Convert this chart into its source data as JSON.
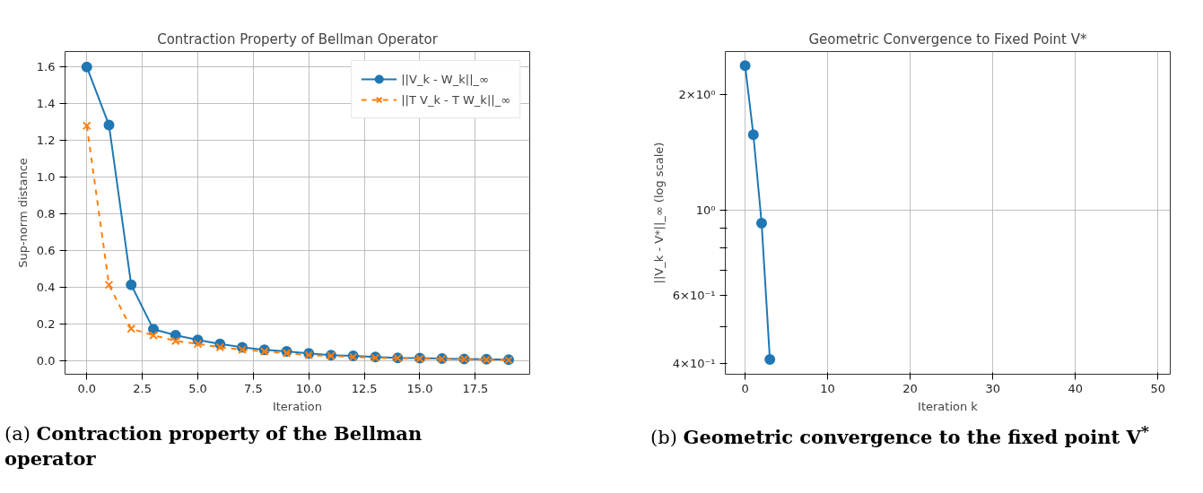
{
  "chart_data": [
    {
      "type": "line",
      "title": "Contraction Property of Bellman Operator",
      "xlabel": "Iteration",
      "ylabel": "Sup-norm distance",
      "x": [
        0,
        1,
        2,
        3,
        4,
        5,
        6,
        7,
        8,
        9,
        10,
        11,
        12,
        13,
        14,
        15,
        16,
        17,
        18,
        19
      ],
      "series": [
        {
          "name": "||V_k - W_k||_∞",
          "color": "#1f77b4",
          "marker": "circle",
          "line_style": "solid",
          "values": [
            1.6,
            1.283,
            0.413,
            0.171,
            0.138,
            0.113,
            0.091,
            0.073,
            0.059,
            0.05,
            0.039,
            0.03,
            0.026,
            0.02,
            0.015,
            0.014,
            0.011,
            0.009,
            0.008,
            0.005
          ]
        },
        {
          "name": "||T V_k - T W_k||_∞",
          "color": "#ff7f0e",
          "marker": "cross",
          "line_style": "dashed",
          "values": [
            1.28,
            0.413,
            0.174,
            0.138,
            0.107,
            0.091,
            0.073,
            0.059,
            0.05,
            0.041,
            0.03,
            0.026,
            0.02,
            0.015,
            0.014,
            0.011,
            0.009,
            0.008,
            0.005,
            0.003
          ]
        }
      ],
      "xlim": [
        -0.98,
        19.95
      ],
      "ylim": [
        -0.074,
        1.684
      ],
      "xticks": [
        {
          "value": 0,
          "label": "0.0"
        },
        {
          "value": 2.5,
          "label": "2.5"
        },
        {
          "value": 5,
          "label": "5.0"
        },
        {
          "value": 7.5,
          "label": "7.5"
        },
        {
          "value": 10,
          "label": "10.0"
        },
        {
          "value": 12.5,
          "label": "12.5"
        },
        {
          "value": 15,
          "label": "15.0"
        },
        {
          "value": 17.5,
          "label": "17.5"
        }
      ],
      "yticks": [
        {
          "value": 0,
          "label": "0.0"
        },
        {
          "value": 0.2,
          "label": "0.2"
        },
        {
          "value": 0.4,
          "label": "0.4"
        },
        {
          "value": 0.6,
          "label": "0.6"
        },
        {
          "value": 0.8,
          "label": "0.8"
        },
        {
          "value": 1.0,
          "label": "1.0"
        },
        {
          "value": 1.2,
          "label": "1.2"
        },
        {
          "value": 1.4,
          "label": "1.4"
        },
        {
          "value": 1.6,
          "label": "1.6"
        }
      ],
      "grid": true,
      "legend": "top right",
      "annotations": [
        "(a) Contraction property of the Bellman operator"
      ]
    },
    {
      "type": "line",
      "title": "Geometric Convergence to Fixed Point V*",
      "xlabel": "Iteration k",
      "ylabel": "||V_k - V*||_∞ (log scale)",
      "x": [
        0,
        1,
        2,
        3
      ],
      "series": [
        {
          "color": "#1f77b4",
          "values": [
            2.37,
            1.57,
            0.926,
            0.41
          ]
        }
      ],
      "marker": "circle",
      "log": "y",
      "xlim": [
        -2.4,
        51.5
      ],
      "ylim": [
        0.3755,
        2.58
      ],
      "xticks": [
        0,
        10,
        20,
        30,
        40,
        50
      ],
      "yticks": [
        {
          "value": 0.4,
          "label": "4×10⁻¹"
        },
        {
          "value": 0.5,
          "label": null
        },
        {
          "value": 0.6,
          "label": "6×10⁻¹"
        },
        {
          "value": 0.7,
          "label": null
        },
        {
          "value": 0.8,
          "label": null
        },
        {
          "value": 0.9,
          "label": null
        },
        {
          "value": 1,
          "label": "10⁰"
        },
        {
          "value": 2,
          "label": "2×10⁰"
        }
      ],
      "grid": true,
      "annotations": [
        "(b) Geometric convergence to the fixed point V$^{*}$"
      ]
    }
  ]
}
